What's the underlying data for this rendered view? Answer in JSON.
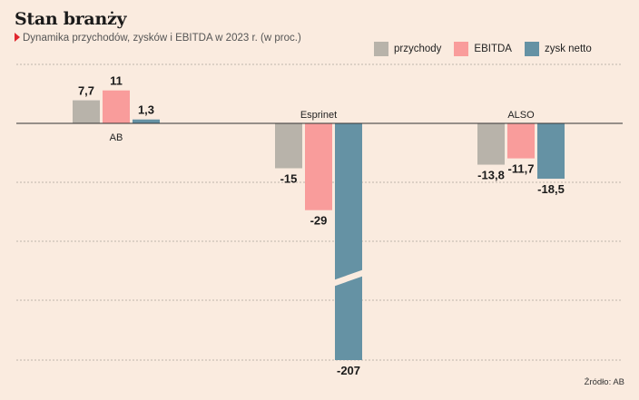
{
  "header": {
    "title": "Stan branży",
    "subtitle": "Dynamika przychodów, zysków i EBITDA w 2023 r. (w proc.)"
  },
  "source": "Źródło: AB",
  "colors": {
    "przychody": "#b8b3aa",
    "EBITDA": "#f99c9b",
    "zysk_netto": "#6592a4",
    "background": "#faebdf"
  },
  "chart_data": {
    "type": "bar",
    "title": "Stan branży",
    "subtitle": "Dynamika przychodów, zysków i EBITDA w 2023 r. (w proc.)",
    "categories": [
      "AB",
      "Esprinet",
      "ALSO"
    ],
    "series": [
      {
        "name": "przychody",
        "values": [
          7.7,
          -15,
          -13.8
        ],
        "labels": [
          "7,7",
          "-15",
          "-13,8"
        ]
      },
      {
        "name": "EBITDA",
        "values": [
          11,
          -29,
          -11.7
        ],
        "labels": [
          "11",
          "-29",
          "-11,7"
        ]
      },
      {
        "name": "zysk netto",
        "values": [
          1.3,
          -207,
          -18.5
        ],
        "labels": [
          "1,3",
          "-207",
          "-18,5"
        ]
      }
    ],
    "axis_break": {
      "series": "zysk netto",
      "category": "Esprinet"
    },
    "ylim": [
      -80,
      20
    ],
    "grid": true,
    "legend": "top-right"
  }
}
